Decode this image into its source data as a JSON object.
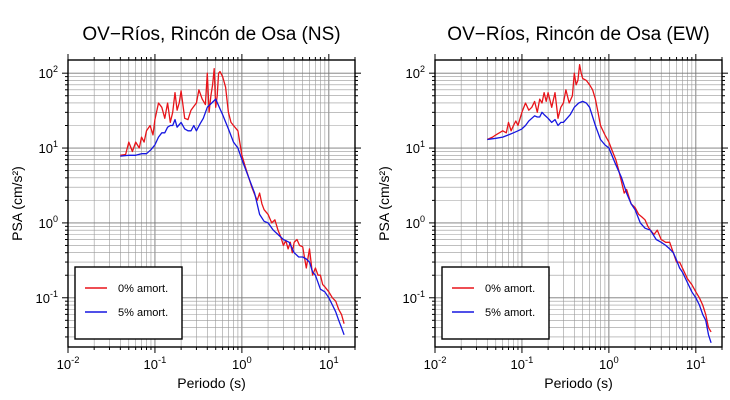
{
  "chart_data": [
    {
      "type": "line",
      "title": "OV−Ríos, Rincón de Osa (NS)",
      "xlabel": "Periodo (s)",
      "ylabel": "PSA (cm/s²)",
      "xscale": "log",
      "yscale": "log",
      "xlim": [
        0.01,
        20
      ],
      "ylim": [
        0.022,
        150
      ],
      "grid": true,
      "legend_position": "bottom-left",
      "series": [
        {
          "name": "0% amort.",
          "color": "#e8141a",
          "x": [
            0.04,
            0.046,
            0.05,
            0.055,
            0.06,
            0.066,
            0.07,
            0.075,
            0.08,
            0.088,
            0.095,
            0.1,
            0.11,
            0.12,
            0.13,
            0.14,
            0.15,
            0.16,
            0.17,
            0.18,
            0.19,
            0.2,
            0.22,
            0.24,
            0.26,
            0.28,
            0.3,
            0.32,
            0.35,
            0.38,
            0.4,
            0.42,
            0.44,
            0.46,
            0.48,
            0.5,
            0.52,
            0.54,
            0.56,
            0.6,
            0.65,
            0.7,
            0.75,
            0.8,
            0.9,
            1.0,
            1.1,
            1.2,
            1.3,
            1.4,
            1.5,
            1.6,
            1.7,
            1.8,
            2.0,
            2.2,
            2.4,
            2.6,
            2.8,
            3.0,
            3.2,
            3.4,
            3.6,
            3.8,
            4.0,
            4.3,
            4.6,
            5.0,
            5.5,
            6.0,
            6.5,
            7.0,
            7.5,
            8.0,
            8.5,
            9.0,
            10,
            11,
            12,
            13,
            14,
            15
          ],
          "values": [
            8,
            8.2,
            12,
            9,
            12,
            10,
            14,
            12,
            17,
            20,
            15,
            24,
            40,
            35,
            25,
            40,
            22,
            30,
            55,
            32,
            40,
            58,
            25,
            24,
            32,
            36,
            40,
            60,
            45,
            38,
            100,
            30,
            50,
            70,
            115,
            35,
            50,
            100,
            105,
            90,
            65,
            30,
            22,
            20,
            17,
            8,
            5.5,
            4,
            3,
            2.4,
            2,
            2.5,
            1.8,
            1.5,
            1.3,
            1.0,
            1.1,
            0.8,
            0.65,
            0.5,
            0.58,
            0.45,
            0.55,
            0.4,
            0.55,
            0.6,
            0.5,
            0.48,
            0.25,
            0.45,
            0.2,
            0.25,
            0.2,
            0.2,
            0.15,
            0.14,
            0.12,
            0.1,
            0.09,
            0.07,
            0.06,
            0.045
          ]
        },
        {
          "name": "5% amort.",
          "color": "#1616e0",
          "x": [
            0.04,
            0.05,
            0.06,
            0.07,
            0.08,
            0.09,
            0.1,
            0.11,
            0.12,
            0.13,
            0.14,
            0.15,
            0.16,
            0.17,
            0.18,
            0.2,
            0.22,
            0.24,
            0.26,
            0.28,
            0.3,
            0.33,
            0.36,
            0.4,
            0.45,
            0.5,
            0.55,
            0.6,
            0.7,
            0.8,
            0.9,
            1.0,
            1.2,
            1.4,
            1.6,
            1.8,
            2.0,
            2.3,
            2.6,
            3.0,
            3.5,
            4.0,
            4.5,
            5.0,
            5.5,
            6.0,
            6.5,
            7.0,
            8.0,
            9.0,
            10,
            11,
            12,
            13,
            14,
            15
          ],
          "values": [
            7.8,
            8,
            8,
            8.4,
            8.4,
            9.5,
            11,
            14,
            16,
            16,
            19,
            20,
            20,
            24,
            19,
            22,
            18,
            17,
            17,
            20,
            17,
            21,
            25,
            35,
            40,
            45,
            35,
            28,
            18,
            12,
            10,
            7,
            4,
            2.5,
            1.3,
            1.05,
            1.0,
            0.8,
            0.7,
            0.6,
            0.55,
            0.4,
            0.35,
            0.35,
            0.33,
            0.3,
            0.22,
            0.2,
            0.13,
            0.12,
            0.1,
            0.08,
            0.065,
            0.05,
            0.04,
            0.032
          ]
        }
      ]
    },
    {
      "type": "line",
      "title": "OV−Ríos, Rincón de Osa (EW)",
      "xlabel": "Periodo (s)",
      "ylabel": "PSA (cm/s²)",
      "xscale": "log",
      "yscale": "log",
      "xlim": [
        0.01,
        20
      ],
      "ylim": [
        0.022,
        150
      ],
      "grid": true,
      "legend_position": "bottom-left",
      "series": [
        {
          "name": "0% amort.",
          "color": "#e8141a",
          "x": [
            0.04,
            0.046,
            0.05,
            0.055,
            0.06,
            0.066,
            0.07,
            0.075,
            0.08,
            0.085,
            0.09,
            0.1,
            0.11,
            0.12,
            0.13,
            0.14,
            0.15,
            0.16,
            0.17,
            0.18,
            0.19,
            0.2,
            0.22,
            0.24,
            0.26,
            0.28,
            0.3,
            0.32,
            0.35,
            0.38,
            0.4,
            0.42,
            0.44,
            0.46,
            0.48,
            0.5,
            0.55,
            0.6,
            0.65,
            0.7,
            0.75,
            0.8,
            0.9,
            1.0,
            1.1,
            1.2,
            1.3,
            1.4,
            1.5,
            1.6,
            1.8,
            2.0,
            2.2,
            2.4,
            2.6,
            2.8,
            3.0,
            3.3,
            3.6,
            4.0,
            4.5,
            5.0,
            5.5,
            6.0,
            6.5,
            7.0,
            8.0,
            9.0,
            10,
            11,
            12,
            13,
            14,
            15
          ],
          "values": [
            13,
            14,
            15,
            16,
            17,
            16,
            22,
            17,
            20,
            23,
            20,
            30,
            40,
            32,
            35,
            42,
            30,
            45,
            40,
            55,
            42,
            55,
            35,
            55,
            25,
            35,
            40,
            60,
            40,
            50,
            100,
            70,
            80,
            130,
            100,
            85,
            80,
            70,
            60,
            45,
            30,
            20,
            15,
            12,
            9,
            7,
            5,
            3.5,
            2.5,
            2.8,
            1.8,
            1.6,
            1.3,
            1.2,
            1.1,
            0.9,
            0.8,
            0.7,
            0.8,
            0.6,
            0.55,
            0.55,
            0.4,
            0.3,
            0.3,
            0.25,
            0.18,
            0.15,
            0.12,
            0.1,
            0.08,
            0.06,
            0.04,
            0.035
          ]
        },
        {
          "name": "5% amort.",
          "color": "#1616e0",
          "x": [
            0.04,
            0.05,
            0.06,
            0.07,
            0.08,
            0.09,
            0.1,
            0.11,
            0.12,
            0.13,
            0.14,
            0.15,
            0.16,
            0.17,
            0.18,
            0.2,
            0.22,
            0.24,
            0.26,
            0.28,
            0.3,
            0.33,
            0.36,
            0.4,
            0.45,
            0.5,
            0.55,
            0.6,
            0.7,
            0.8,
            0.9,
            1.0,
            1.2,
            1.4,
            1.6,
            1.8,
            2.0,
            2.3,
            2.6,
            3.0,
            3.5,
            4.0,
            4.5,
            5.0,
            5.5,
            6.0,
            6.5,
            7.0,
            8.0,
            9.0,
            10,
            11,
            12,
            13,
            14,
            15
          ],
          "values": [
            13,
            13.5,
            14,
            15,
            16,
            17,
            18,
            20,
            23,
            25,
            27,
            26,
            26,
            30,
            28,
            25,
            22,
            24,
            20,
            22,
            22,
            25,
            28,
            35,
            40,
            42,
            40,
            35,
            20,
            13,
            11,
            10,
            6,
            4,
            2.5,
            1.8,
            1.5,
            1.0,
            0.85,
            0.8,
            0.6,
            0.55,
            0.5,
            0.45,
            0.4,
            0.32,
            0.25,
            0.22,
            0.16,
            0.12,
            0.1,
            0.08,
            0.06,
            0.05,
            0.032,
            0.025
          ]
        }
      ]
    }
  ]
}
